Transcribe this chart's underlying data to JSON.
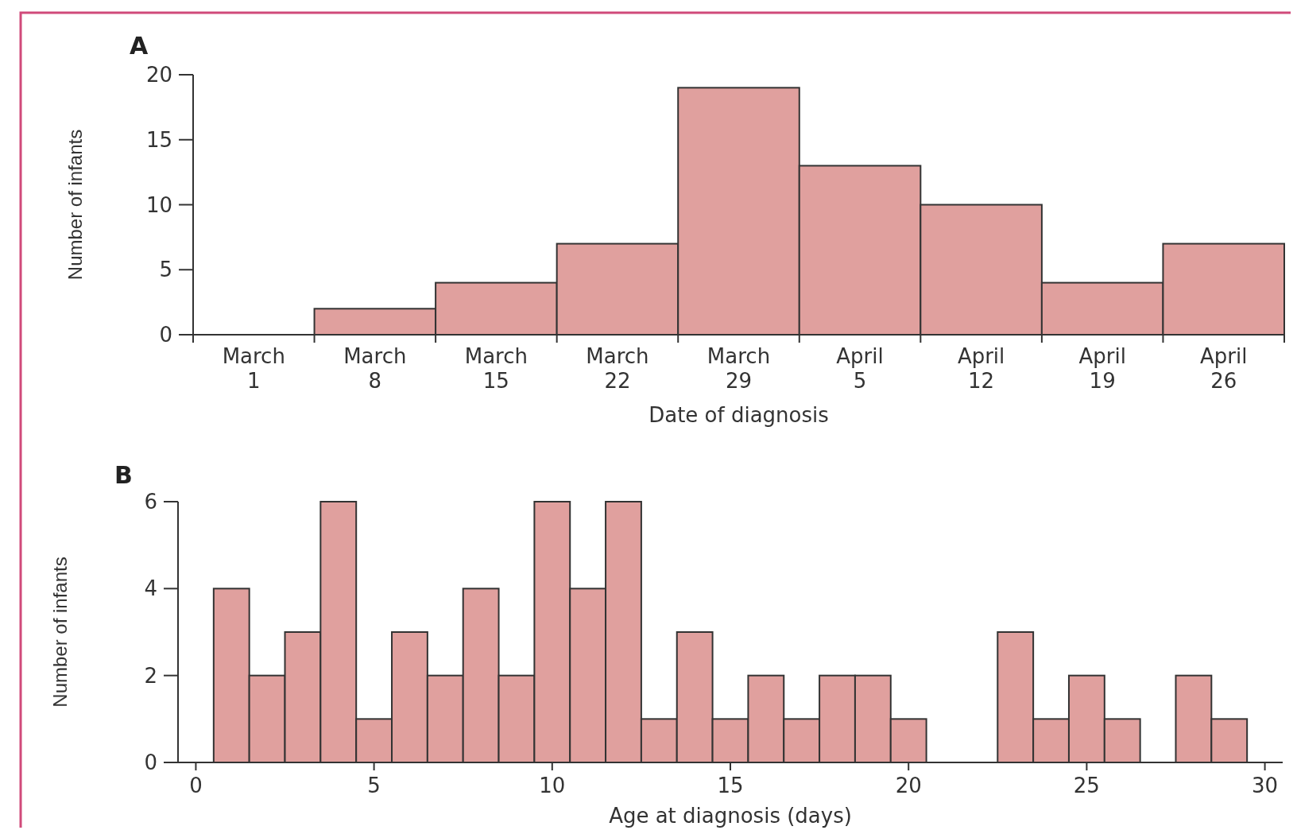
{
  "chart_data": [
    {
      "type": "bar",
      "title": "A",
      "xlabel": "Date of diagnosis",
      "ylabel": "Number of infants",
      "categories": [
        "March 1",
        "March 8",
        "March 15",
        "March 22",
        "March 29",
        "April 5",
        "April 12",
        "April 19",
        "April 26"
      ],
      "values": [
        0,
        2,
        4,
        7,
        19,
        13,
        10,
        4,
        7
      ],
      "color": "#e0a09e",
      "ylim": [
        0,
        20
      ],
      "yticks": [
        0,
        5,
        10,
        15,
        20
      ],
      "grid": false
    },
    {
      "type": "histogram",
      "title": "B",
      "xlabel": "Age at diagnosis (days)",
      "ylabel": "Number of infants",
      "bins": [
        0.5,
        1.5,
        2.5,
        3.5,
        4.5,
        5.5,
        6.5,
        7.5,
        8.5,
        9.5,
        10.5,
        11.5,
        12.5,
        13.5,
        14.5,
        15.5,
        16.5,
        17.5,
        18.5,
        19.5,
        20.5,
        21.5,
        22.5,
        23.5,
        24.5,
        25.5,
        26.5,
        27.5,
        28.5,
        29.5
      ],
      "values": [
        4,
        2,
        3,
        6,
        1,
        3,
        2,
        4,
        2,
        6,
        4,
        6,
        1,
        3,
        1,
        2,
        1,
        2,
        2,
        1,
        0,
        0,
        3,
        1,
        2,
        1,
        0,
        2,
        1
      ],
      "color": "#e0a09e",
      "xlim": [
        -0.5,
        30.5
      ],
      "xticks": [
        0,
        5,
        10,
        15,
        20,
        25,
        30
      ],
      "ylim": [
        0,
        6
      ],
      "yticks": [
        0,
        2,
        4,
        6
      ],
      "grid": false
    }
  ]
}
